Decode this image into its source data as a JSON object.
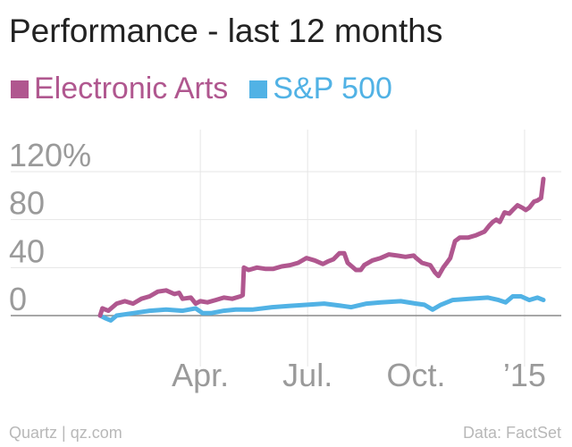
{
  "chart_data": {
    "type": "line",
    "title": "Performance - last 12 months",
    "xlabel": "",
    "ylabel": "",
    "ylim": [
      -25,
      150
    ],
    "x_range": [
      "2014-01-06",
      "2015-01-20"
    ],
    "y_ticks": [
      {
        "value": 0,
        "label": "0"
      },
      {
        "value": 40,
        "label": "40"
      },
      {
        "value": 80,
        "label": "80"
      },
      {
        "value": 120,
        "label": "120%"
      }
    ],
    "x_ticks": [
      {
        "date": "2014-04-01",
        "label": "Apr."
      },
      {
        "date": "2014-07-01",
        "label": "Jul."
      },
      {
        "date": "2014-10-01",
        "label": "Oct."
      },
      {
        "date": "2015-01-01",
        "label": "’15"
      }
    ],
    "grid": true,
    "legend_position": "top-left",
    "series": [
      {
        "name": "Electronic Arts",
        "color": "#b0578f",
        "points": [
          [
            "2014-01-06",
            0
          ],
          [
            "2014-01-08",
            6
          ],
          [
            "2014-01-13",
            4
          ],
          [
            "2014-01-20",
            10
          ],
          [
            "2014-01-27",
            12
          ],
          [
            "2014-02-03",
            10
          ],
          [
            "2014-02-10",
            14
          ],
          [
            "2014-02-17",
            16
          ],
          [
            "2014-02-24",
            20
          ],
          [
            "2014-03-03",
            21
          ],
          [
            "2014-03-10",
            18
          ],
          [
            "2014-03-14",
            19
          ],
          [
            "2014-03-17",
            14
          ],
          [
            "2014-03-24",
            15
          ],
          [
            "2014-03-28",
            10
          ],
          [
            "2014-04-01",
            12
          ],
          [
            "2014-04-07",
            11
          ],
          [
            "2014-04-14",
            13
          ],
          [
            "2014-04-21",
            15
          ],
          [
            "2014-04-28",
            14
          ],
          [
            "2014-05-05",
            16
          ],
          [
            "2014-05-07",
            17
          ],
          [
            "2014-05-08",
            40
          ],
          [
            "2014-05-12",
            38
          ],
          [
            "2014-05-19",
            40
          ],
          [
            "2014-05-26",
            39
          ],
          [
            "2014-06-02",
            39
          ],
          [
            "2014-06-09",
            41
          ],
          [
            "2014-06-16",
            42
          ],
          [
            "2014-06-23",
            44
          ],
          [
            "2014-06-30",
            48
          ],
          [
            "2014-07-07",
            46
          ],
          [
            "2014-07-14",
            43
          ],
          [
            "2014-07-18",
            45
          ],
          [
            "2014-07-23",
            47
          ],
          [
            "2014-07-28",
            52
          ],
          [
            "2014-08-01",
            52
          ],
          [
            "2014-08-04",
            44
          ],
          [
            "2014-08-11",
            38
          ],
          [
            "2014-08-15",
            38
          ],
          [
            "2014-08-18",
            42
          ],
          [
            "2014-08-25",
            46
          ],
          [
            "2014-09-01",
            48
          ],
          [
            "2014-09-08",
            51
          ],
          [
            "2014-09-15",
            50
          ],
          [
            "2014-09-22",
            49
          ],
          [
            "2014-09-29",
            50
          ],
          [
            "2014-10-01",
            48
          ],
          [
            "2014-10-06",
            44
          ],
          [
            "2014-10-13",
            42
          ],
          [
            "2014-10-17",
            36
          ],
          [
            "2014-10-20",
            33
          ],
          [
            "2014-10-24",
            40
          ],
          [
            "2014-10-27",
            44
          ],
          [
            "2014-10-30",
            48
          ],
          [
            "2014-11-03",
            62
          ],
          [
            "2014-11-07",
            65
          ],
          [
            "2014-11-14",
            65
          ],
          [
            "2014-11-21",
            67
          ],
          [
            "2014-11-28",
            70
          ],
          [
            "2014-12-02",
            75
          ],
          [
            "2014-12-05",
            78
          ],
          [
            "2014-12-08",
            80
          ],
          [
            "2014-12-11",
            78
          ],
          [
            "2014-12-15",
            86
          ],
          [
            "2014-12-19",
            85
          ],
          [
            "2014-12-22",
            88
          ],
          [
            "2014-12-26",
            92
          ],
          [
            "2014-12-30",
            90
          ],
          [
            "2015-01-02",
            88
          ],
          [
            "2015-01-05",
            90
          ],
          [
            "2015-01-09",
            95
          ],
          [
            "2015-01-12",
            96
          ],
          [
            "2015-01-15",
            98
          ],
          [
            "2015-01-17",
            114
          ]
        ]
      },
      {
        "name": "S&P 500",
        "color": "#51b2e5",
        "points": [
          [
            "2014-01-06",
            0
          ],
          [
            "2014-01-10",
            -2
          ],
          [
            "2014-01-15",
            -4
          ],
          [
            "2014-01-20",
            0
          ],
          [
            "2014-02-03",
            2
          ],
          [
            "2014-02-17",
            4
          ],
          [
            "2014-03-03",
            5
          ],
          [
            "2014-03-17",
            4
          ],
          [
            "2014-03-28",
            6
          ],
          [
            "2014-04-03",
            2
          ],
          [
            "2014-04-10",
            2
          ],
          [
            "2014-04-21",
            4
          ],
          [
            "2014-05-01",
            5
          ],
          [
            "2014-05-15",
            5
          ],
          [
            "2014-06-01",
            7
          ],
          [
            "2014-06-15",
            8
          ],
          [
            "2014-07-01",
            9
          ],
          [
            "2014-07-15",
            10
          ],
          [
            "2014-07-31",
            8
          ],
          [
            "2014-08-07",
            7
          ],
          [
            "2014-08-20",
            10
          ],
          [
            "2014-09-01",
            11
          ],
          [
            "2014-09-18",
            12
          ],
          [
            "2014-10-01",
            10
          ],
          [
            "2014-10-08",
            9
          ],
          [
            "2014-10-15",
            5
          ],
          [
            "2014-10-22",
            9
          ],
          [
            "2014-11-01",
            13
          ],
          [
            "2014-11-15",
            14
          ],
          [
            "2014-12-01",
            15
          ],
          [
            "2014-12-10",
            13
          ],
          [
            "2014-12-16",
            11
          ],
          [
            "2014-12-22",
            16
          ],
          [
            "2014-12-29",
            16
          ],
          [
            "2015-01-05",
            13
          ],
          [
            "2015-01-12",
            15
          ],
          [
            "2015-01-17",
            13
          ]
        ]
      }
    ]
  },
  "footer": {
    "credit": "Quartz | qz.com",
    "source": "Data: FactSet"
  }
}
